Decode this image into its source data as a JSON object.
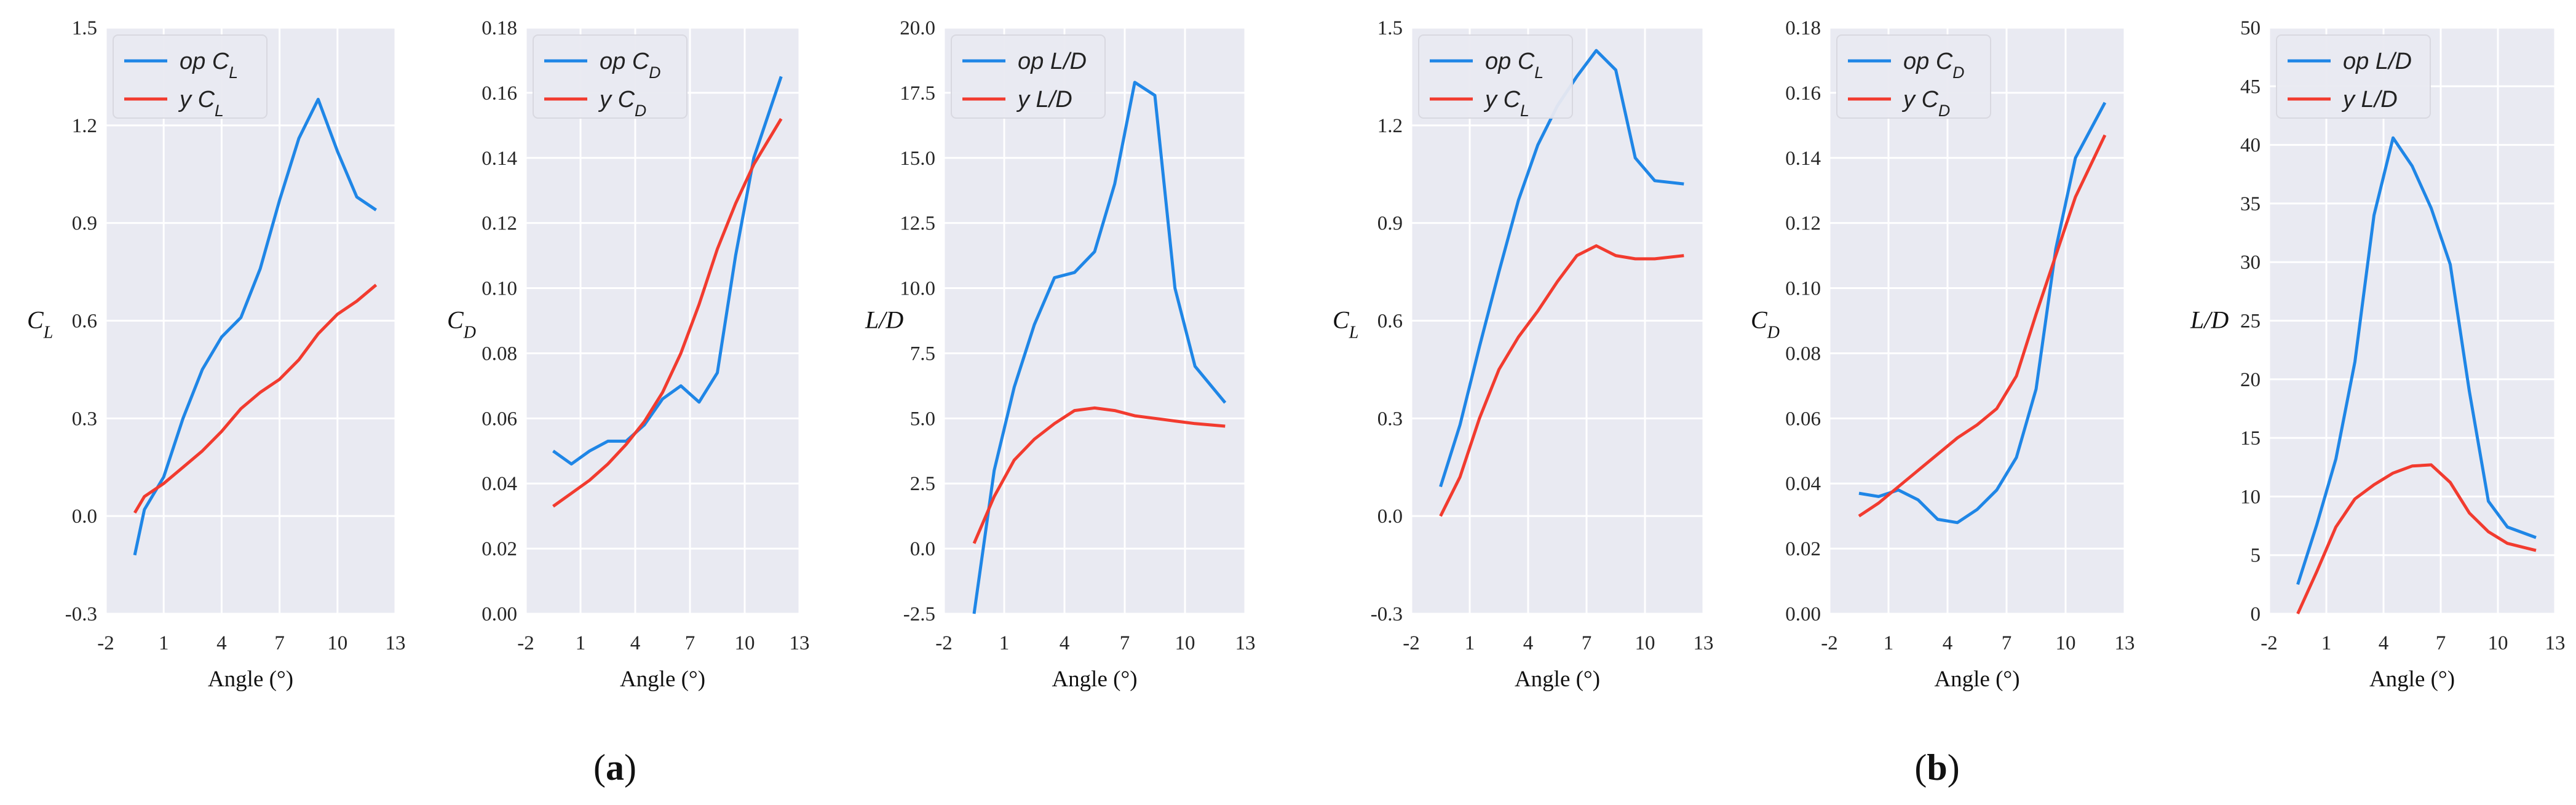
{
  "colors": {
    "op": "#1f86e6",
    "y": "#f23b2f",
    "bg": "#e9eaf2",
    "grid": "#ffffff"
  },
  "panel_labels": [
    "(a)",
    "(b)"
  ],
  "chart_data": [
    {
      "type": "line",
      "group": "a",
      "xlabel": "Angle (°)",
      "ylabel": "C_L",
      "xlim": [
        -2,
        13
      ],
      "xticks": [
        -2,
        1,
        4,
        7,
        10,
        13
      ],
      "ylim": [
        -0.3,
        1.5
      ],
      "yticks": [
        "-0.3",
        "0.0",
        "0.3",
        "0.6",
        "0.9",
        "1.2",
        "1.5"
      ],
      "legend_position": "top-left",
      "grid": true,
      "series": [
        {
          "name": "op C_L",
          "color_key": "op",
          "x": [
            -0.5,
            0,
            1,
            2,
            3,
            4,
            5,
            6,
            7,
            8,
            9,
            10,
            11,
            12
          ],
          "y": [
            -0.12,
            0.02,
            0.12,
            0.3,
            0.45,
            0.55,
            0.61,
            0.76,
            0.97,
            1.16,
            1.28,
            1.12,
            0.98,
            0.94
          ]
        },
        {
          "name": "y C_L",
          "color_key": "y",
          "x": [
            -0.5,
            0,
            1,
            2,
            3,
            4,
            5,
            6,
            7,
            8,
            9,
            10,
            11,
            12
          ],
          "y": [
            0.01,
            0.06,
            0.1,
            0.15,
            0.2,
            0.26,
            0.33,
            0.38,
            0.42,
            0.48,
            0.56,
            0.62,
            0.66,
            0.71
          ]
        }
      ]
    },
    {
      "type": "line",
      "group": "a",
      "xlabel": "Angle (°)",
      "ylabel": "C_D",
      "xlim": [
        -2,
        13
      ],
      "xticks": [
        -2,
        1,
        4,
        7,
        10,
        13
      ],
      "ylim": [
        0,
        0.18
      ],
      "yticks": [
        "0.00",
        "0.02",
        "0.04",
        "0.06",
        "0.08",
        "0.10",
        "0.12",
        "0.14",
        "0.16",
        "0.18"
      ],
      "legend_position": "top-left",
      "grid": true,
      "series": [
        {
          "name": "op C_D",
          "color_key": "op",
          "x": [
            -0.5,
            0.5,
            1.5,
            2.5,
            3.5,
            4.5,
            5.5,
            6.5,
            7.5,
            8.5,
            9.5,
            10.5,
            12
          ],
          "y": [
            0.05,
            0.046,
            0.05,
            0.053,
            0.053,
            0.058,
            0.066,
            0.07,
            0.065,
            0.074,
            0.11,
            0.14,
            0.165
          ]
        },
        {
          "name": "y C_D",
          "color_key": "y",
          "x": [
            -0.5,
            0.5,
            1.5,
            2.5,
            3.5,
            4.5,
            5.5,
            6.5,
            7.5,
            8.5,
            9.5,
            10.5,
            12
          ],
          "y": [
            0.033,
            0.037,
            0.041,
            0.046,
            0.052,
            0.059,
            0.068,
            0.08,
            0.095,
            0.112,
            0.126,
            0.138,
            0.152
          ]
        }
      ]
    },
    {
      "type": "line",
      "group": "a",
      "xlabel": "Angle (°)",
      "ylabel": "L/D",
      "xlim": [
        -2,
        13
      ],
      "xticks": [
        -2,
        1,
        4,
        7,
        10,
        13
      ],
      "ylim": [
        -2.5,
        20
      ],
      "yticks": [
        "-2.5",
        "0.0",
        "2.5",
        "5.0",
        "7.5",
        "10.0",
        "12.5",
        "15.0",
        "17.5",
        "20.0"
      ],
      "legend_position": "top-left",
      "grid": true,
      "series": [
        {
          "name": "op L/D",
          "color_key": "op",
          "x": [
            -0.5,
            0.5,
            1.5,
            2.5,
            3.5,
            4.5,
            5.5,
            6.5,
            7.5,
            8.5,
            9.5,
            10.5,
            12
          ],
          "y": [
            -2.5,
            3.0,
            6.2,
            8.6,
            10.4,
            10.6,
            11.4,
            14.0,
            17.9,
            17.4,
            10.0,
            7.0,
            5.6
          ]
        },
        {
          "name": "y L/D",
          "color_key": "y",
          "x": [
            -0.5,
            0.5,
            1.5,
            2.5,
            3.5,
            4.5,
            5.5,
            6.5,
            7.5,
            8.5,
            9.5,
            10.5,
            12
          ],
          "y": [
            0.2,
            2.0,
            3.4,
            4.2,
            4.8,
            5.3,
            5.4,
            5.3,
            5.1,
            5.0,
            4.9,
            4.8,
            4.7
          ]
        }
      ]
    },
    {
      "type": "line",
      "group": "b",
      "xlabel": "Angle (°)",
      "ylabel": "C_L",
      "xlim": [
        -2,
        13
      ],
      "xticks": [
        -2,
        1,
        4,
        7,
        10,
        13
      ],
      "ylim": [
        -0.3,
        1.5
      ],
      "yticks": [
        "-0.3",
        "0.0",
        "0.3",
        "0.6",
        "0.9",
        "1.2",
        "1.5"
      ],
      "legend_position": "top-left",
      "grid": true,
      "series": [
        {
          "name": "op C_L",
          "color_key": "op",
          "x": [
            -0.5,
            0.5,
            1.5,
            2.5,
            3.5,
            4.5,
            5.5,
            6.5,
            7.5,
            8.5,
            9.5,
            10.5,
            12
          ],
          "y": [
            0.09,
            0.28,
            0.52,
            0.75,
            0.97,
            1.14,
            1.26,
            1.35,
            1.43,
            1.37,
            1.1,
            1.03,
            1.02
          ]
        },
        {
          "name": "y C_L",
          "color_key": "y",
          "x": [
            -0.5,
            0.5,
            1.5,
            2.5,
            3.5,
            4.5,
            5.5,
            6.5,
            7.5,
            8.5,
            9.5,
            10.5,
            12
          ],
          "y": [
            0.0,
            0.12,
            0.3,
            0.45,
            0.55,
            0.63,
            0.72,
            0.8,
            0.83,
            0.8,
            0.79,
            0.79,
            0.8
          ]
        }
      ]
    },
    {
      "type": "line",
      "group": "b",
      "xlabel": "Angle (°)",
      "ylabel": "C_D",
      "xlim": [
        -2,
        13
      ],
      "xticks": [
        -2,
        1,
        4,
        7,
        10,
        13
      ],
      "ylim": [
        0,
        0.18
      ],
      "yticks": [
        "0.00",
        "0.02",
        "0.04",
        "0.06",
        "0.08",
        "0.10",
        "0.12",
        "0.14",
        "0.16",
        "0.18"
      ],
      "legend_position": "top-left",
      "grid": true,
      "series": [
        {
          "name": "op C_D",
          "color_key": "op",
          "x": [
            -0.5,
            0.5,
            1.5,
            2.5,
            3.5,
            4.5,
            5.5,
            6.5,
            7.5,
            8.5,
            9.5,
            10.5,
            12
          ],
          "y": [
            0.037,
            0.036,
            0.038,
            0.035,
            0.029,
            0.028,
            0.032,
            0.038,
            0.048,
            0.069,
            0.112,
            0.14,
            0.157
          ]
        },
        {
          "name": "y C_D",
          "color_key": "y",
          "x": [
            -0.5,
            0.5,
            1.5,
            2.5,
            3.5,
            4.5,
            5.5,
            6.5,
            7.5,
            8.5,
            9.5,
            10.5,
            12
          ],
          "y": [
            0.03,
            0.034,
            0.039,
            0.044,
            0.049,
            0.054,
            0.058,
            0.063,
            0.073,
            0.092,
            0.11,
            0.128,
            0.147
          ]
        }
      ]
    },
    {
      "type": "line",
      "group": "b",
      "xlabel": "Angle (°)",
      "ylabel": "L/D",
      "xlim": [
        -2,
        13
      ],
      "xticks": [
        -2,
        1,
        4,
        7,
        10,
        13
      ],
      "ylim": [
        0,
        50
      ],
      "yticks": [
        "0",
        "5",
        "10",
        "15",
        "20",
        "25",
        "30",
        "35",
        "40",
        "45",
        "50"
      ],
      "legend_position": "top-left",
      "grid": true,
      "series": [
        {
          "name": "op L/D",
          "color_key": "op",
          "x": [
            -0.5,
            0.5,
            1.5,
            2.5,
            3.5,
            4.5,
            5.5,
            6.5,
            7.5,
            8.5,
            9.5,
            10.5,
            12
          ],
          "y": [
            2.5,
            7.6,
            13.2,
            21.5,
            34.0,
            40.6,
            38.2,
            34.6,
            29.8,
            19.0,
            9.6,
            7.4,
            6.5
          ]
        },
        {
          "name": "y L/D",
          "color_key": "y",
          "x": [
            -0.5,
            0.5,
            1.5,
            2.5,
            3.5,
            4.5,
            5.5,
            6.5,
            7.5,
            8.5,
            9.5,
            10.5,
            12
          ],
          "y": [
            0.0,
            3.6,
            7.4,
            9.8,
            11.0,
            12.0,
            12.6,
            12.7,
            11.2,
            8.6,
            7.0,
            6.0,
            5.4
          ]
        }
      ]
    }
  ]
}
